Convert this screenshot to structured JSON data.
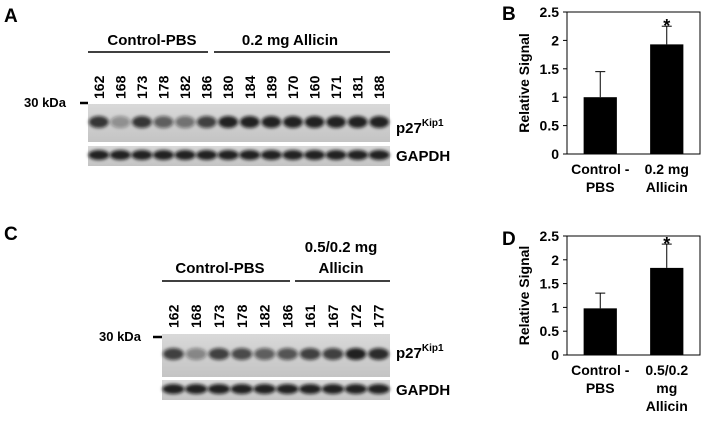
{
  "panels": {
    "A": {
      "letter": "A",
      "group_labels": [
        "Control-PBS",
        "0.2 mg Allicin"
      ],
      "lanes": [
        "162",
        "168",
        "173",
        "178",
        "182",
        "186",
        "180",
        "184",
        "189",
        "170",
        "160",
        "171",
        "181",
        "188"
      ],
      "marker": "30 kDa",
      "protein_main": "p27",
      "protein_sup": "Kip1",
      "loading": "GAPDH"
    },
    "B": {
      "letter": "B",
      "chart_data": {
        "type": "bar",
        "categories": [
          [
            "Control -",
            "PBS"
          ],
          [
            "0.2 mg",
            "Allicin"
          ]
        ],
        "values": [
          1.0,
          1.93
        ],
        "errors": [
          0.45,
          0.32
        ],
        "significance": [
          "",
          "*"
        ],
        "ylabel": "Relative Signal",
        "ylim": [
          0,
          2.5
        ],
        "yticks": [
          "0",
          "0.5",
          "1",
          "1.5",
          "2",
          "2.5"
        ],
        "bar_color": "#000000"
      }
    },
    "C": {
      "letter": "C",
      "group_labels": [
        "Control-PBS",
        "0.5/0.2 mg",
        "Allicin"
      ],
      "lanes": [
        "162",
        "168",
        "173",
        "178",
        "182",
        "186",
        "161",
        "167",
        "172",
        "177"
      ],
      "marker": "30 kDa",
      "protein_main": "p27",
      "protein_sup": "Kip1",
      "loading": "GAPDH"
    },
    "D": {
      "letter": "D",
      "chart_data": {
        "type": "bar",
        "categories": [
          [
            "Control -",
            "PBS"
          ],
          [
            "0.5/0.2",
            "mg",
            "Allicin"
          ]
        ],
        "values": [
          0.98,
          1.83
        ],
        "errors": [
          0.32,
          0.5
        ],
        "significance": [
          "",
          "*"
        ],
        "ylabel": "Relative Signal",
        "ylim": [
          0,
          2.5
        ],
        "yticks": [
          "0",
          "0.5",
          "1",
          "1.5",
          "2",
          "2.5"
        ],
        "bar_color": "#000000"
      }
    }
  }
}
